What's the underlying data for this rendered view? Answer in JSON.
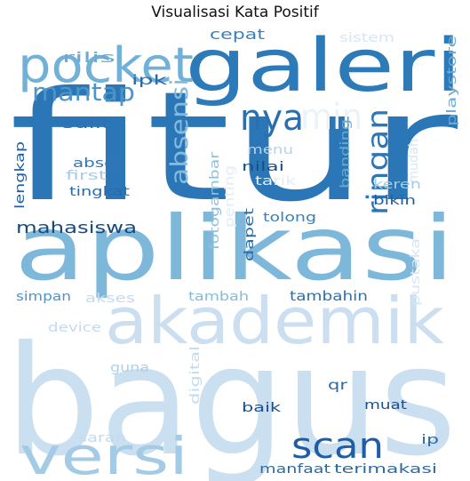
{
  "chart_data": {
    "type": "wordcloud",
    "title": "Visualisasi Kata Positif",
    "palette": "Blues",
    "words": [
      {
        "text": "fitur",
        "weight": 1.0,
        "color": "#2b76b6"
      },
      {
        "text": "bagus",
        "weight": 0.98,
        "color": "#cadff0"
      },
      {
        "text": "aplikasi",
        "weight": 0.82,
        "color": "#7db8da"
      },
      {
        "text": "akademik",
        "weight": 0.56,
        "color": "#cbdff1"
      },
      {
        "text": "galeri",
        "weight": 0.52,
        "color": "#2d7ab8"
      },
      {
        "text": "versi",
        "weight": 0.4,
        "color": "#a3cbe5"
      },
      {
        "text": "pocket",
        "weight": 0.36,
        "color": "#71b1d7"
      },
      {
        "text": "nya",
        "weight": 0.26,
        "color": "#2a6fb0"
      },
      {
        "text": "scan",
        "weight": 0.24,
        "color": "#1f5ea7"
      },
      {
        "text": "min",
        "weight": 0.24,
        "color": "#eaf2fa"
      },
      {
        "text": "ringan",
        "weight": 0.2,
        "color": "#2b76b6"
      },
      {
        "text": "mantap",
        "weight": 0.18,
        "color": "#4d94c8"
      },
      {
        "text": "absensi",
        "weight": 0.18,
        "color": "#82bbdb"
      },
      {
        "text": "mahasiswa",
        "weight": 0.12,
        "color": "#17497e"
      },
      {
        "text": "fotogambar",
        "weight": 0.1,
        "color": "#8cc0dd"
      },
      {
        "text": "tambahin",
        "weight": 0.1,
        "color": "#2f6fa8"
      },
      {
        "text": "rilis",
        "weight": 0.09,
        "color": "#6aaad3"
      },
      {
        "text": "cepat",
        "weight": 0.09,
        "color": "#3b7fba"
      },
      {
        "text": "sistem",
        "weight": 0.09,
        "color": "#d6e6f4"
      },
      {
        "text": "playstore",
        "weight": 0.09,
        "color": "#6aaad3"
      },
      {
        "text": "ipk",
        "weight": 0.09,
        "color": "#2b6aa8"
      },
      {
        "text": "sulit",
        "weight": 0.09,
        "color": "#3070b2"
      },
      {
        "text": "banding",
        "weight": 0.09,
        "color": "#6aaad3"
      },
      {
        "text": "lengkap",
        "weight": 0.08,
        "color": "#1f5ea7"
      },
      {
        "text": "absen",
        "weight": 0.09,
        "color": "#3474b4"
      },
      {
        "text": "menu",
        "weight": 0.09,
        "color": "#b7d4ea"
      },
      {
        "text": "first",
        "weight": 0.09,
        "color": "#a8cce6"
      },
      {
        "text": "nilai",
        "weight": 0.09,
        "color": "#1a4f8c"
      },
      {
        "text": "tarik",
        "weight": 0.09,
        "color": "#e1edf7"
      },
      {
        "text": "mudah",
        "weight": 0.09,
        "color": "#d6e6f4"
      },
      {
        "text": "tingkat",
        "weight": 0.09,
        "color": "#2b6aa8"
      },
      {
        "text": "penting",
        "weight": 0.09,
        "color": "#e1edf7"
      },
      {
        "text": "keren",
        "weight": 0.09,
        "color": "#a3cbe5"
      },
      {
        "text": "bikin",
        "weight": 0.09,
        "color": "#1f5ea7"
      },
      {
        "text": "tolong",
        "weight": 0.09,
        "color": "#3b7fba"
      },
      {
        "text": "dapet",
        "weight": 0.09,
        "color": "#2b6aa8"
      },
      {
        "text": "pustaka",
        "weight": 0.09,
        "color": "#d6e6f4"
      },
      {
        "text": "simpan",
        "weight": 0.09,
        "color": "#4d94c8"
      },
      {
        "text": "akses",
        "weight": 0.09,
        "color": "#c3dbef"
      },
      {
        "text": "tambah",
        "weight": 0.09,
        "color": "#82bbdb"
      },
      {
        "text": "device",
        "weight": 0.09,
        "color": "#c3dbef"
      },
      {
        "text": "guna",
        "weight": 0.09,
        "color": "#b0d0e8"
      },
      {
        "text": "digital",
        "weight": 0.09,
        "color": "#c3dbef"
      },
      {
        "text": "qr",
        "weight": 0.09,
        "color": "#2b6aa8"
      },
      {
        "text": "baik",
        "weight": 0.09,
        "color": "#1a4f8c"
      },
      {
        "text": "muat",
        "weight": 0.09,
        "color": "#1a4f8c"
      },
      {
        "text": "saran",
        "weight": 0.09,
        "color": "#c3dbef"
      },
      {
        "text": "ip",
        "weight": 0.09,
        "color": "#2b6aa8"
      },
      {
        "text": "manfaat",
        "weight": 0.08,
        "color": "#2b6aa8"
      },
      {
        "text": "terimakasi",
        "weight": 0.08,
        "color": "#2b6aa8"
      }
    ]
  }
}
